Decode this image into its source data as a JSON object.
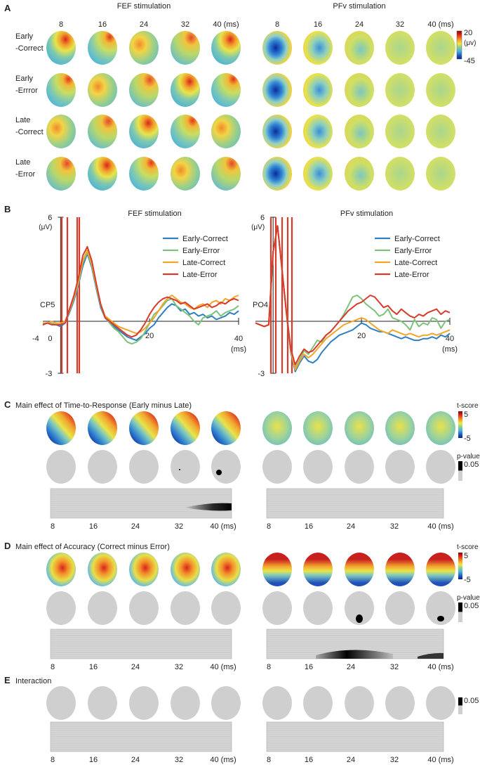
{
  "panels": {
    "A": "A",
    "B": "B",
    "C": "C",
    "D": "D",
    "E": "E"
  },
  "colors": {
    "early_correct": "#2f7fc1",
    "early_error": "#7dc27b",
    "late_correct": "#f0a62a",
    "late_error": "#d93a2b",
    "gray_head": "#cfcfcf",
    "raster_bg": "#d6d6d6"
  },
  "times_ms": [
    "8",
    "16",
    "24",
    "32",
    "40 (ms)"
  ],
  "panelA": {
    "fef_title": "FEF stimulation",
    "pfv_title": "PFv stimulation",
    "rows": [
      {
        "line1": "Early",
        "line2": "-Correct"
      },
      {
        "line1": "Early",
        "line2": "-Errror"
      },
      {
        "line1": "Late",
        "line2": "-Correct"
      },
      {
        "line1": "Late",
        "line2": "-Error"
      }
    ],
    "colorbar": {
      "max": "20",
      "unit": "(μv)",
      "min": "-45"
    }
  },
  "panelC": {
    "title": "Main effect of Time-to-Response (Early minus Late)",
    "tscore": {
      "label": "t-score",
      "max": "5",
      "min": "-5"
    },
    "pvalue": {
      "label": "p-value",
      "value": "0.05"
    }
  },
  "panelD": {
    "title": "Main effect of Accuracy (Correct minus Error)",
    "tscore": {
      "label": "t-score",
      "max": "5",
      "min": "-5"
    },
    "pvalue": {
      "label": "p-value",
      "value": "0.05"
    }
  },
  "panelE": {
    "title": "Interaction",
    "pvalue": {
      "value": "0.05"
    }
  },
  "raster_ticks": [
    "8",
    "16",
    "24",
    "32",
    "40 (ms)"
  ],
  "chart_data": [
    {
      "type": "line",
      "title": "FEF stimulation",
      "channel": "CP5",
      "ylabel": "(μV)",
      "ytick_top": "6",
      "ytick_bottom": "-3",
      "ylim": [
        -3,
        6
      ],
      "xlim": [
        -4,
        40
      ],
      "xtick_labels": {
        "start": "-4",
        "zero": "0",
        "mid": "20",
        "end": "40",
        "unit": "(ms)"
      },
      "x": [
        -4,
        -3,
        -2,
        -1,
        0,
        1,
        2,
        3,
        4,
        5,
        6,
        7,
        8,
        9,
        10,
        11,
        12,
        13,
        14,
        15,
        16,
        17,
        18,
        19,
        20,
        21,
        22,
        23,
        24,
        25,
        26,
        27,
        28,
        29,
        30,
        31,
        32,
        33,
        34,
        35,
        36,
        37,
        38,
        39,
        40
      ],
      "series": [
        {
          "name": "Early-Correct",
          "values": [
            -0.2,
            -0.1,
            -0.1,
            -0.2,
            -0.3,
            -0.1,
            0.5,
            1.2,
            2.1,
            3.2,
            3.9,
            3.1,
            1.9,
            0.8,
            0.2,
            0,
            -0.3,
            -0.5,
            -0.7,
            -0.9,
            -1.0,
            -1.1,
            -0.9,
            -0.7,
            -0.4,
            -0.2,
            0.2,
            0.5,
            0.8,
            1.0,
            0.9,
            0.6,
            0.7,
            0.4,
            0.5,
            0.3,
            0.4,
            0.2,
            0.3,
            0.1,
            0.2,
            0.3,
            0.5,
            0.4,
            0.6
          ]
        },
        {
          "name": "Early-Error",
          "values": [
            -0.2,
            -0.1,
            -0.1,
            -0.2,
            -0.2,
            -0.1,
            0.6,
            1.3,
            2.2,
            3.4,
            4.0,
            3.2,
            2.0,
            0.9,
            0.2,
            -0.1,
            -0.4,
            -0.6,
            -0.9,
            -1.2,
            -1.3,
            -1.2,
            -1.0,
            -0.6,
            -0.1,
            0.4,
            0.6,
            0.9,
            1.2,
            1.3,
            0.9,
            0.7,
            0.5,
            0.3,
            0.0,
            -0.2,
            0.2,
            0.3,
            0.4,
            0.6,
            0.3,
            0.5,
            0.6,
            0.7,
            0.9
          ]
        },
        {
          "name": "Late-Correct",
          "values": [
            -0.1,
            -0.1,
            0,
            -0.1,
            -0.1,
            0,
            0.6,
            1.4,
            2.3,
            3.5,
            4.1,
            3.3,
            2.1,
            1.0,
            0.3,
            0.1,
            -0.1,
            -0.3,
            -0.4,
            -0.5,
            -0.6,
            -0.7,
            -0.6,
            -0.4,
            -0.1,
            0.2,
            0.6,
            1.0,
            1.3,
            1.5,
            1.3,
            1.1,
            1.0,
            0.8,
            0.7,
            0.9,
            1.0,
            0.8,
            1.1,
            1.2,
            1.0,
            1.3,
            1.2,
            1.4,
            1.5
          ]
        },
        {
          "name": "Late-Error",
          "values": [
            -0.2,
            -0.1,
            -0.2,
            -0.2,
            -0.2,
            -0.1,
            0.7,
            1.5,
            2.5,
            3.8,
            4.3,
            3.5,
            2.2,
            1.0,
            0.2,
            0,
            -0.2,
            -0.4,
            -0.6,
            -0.8,
            -0.9,
            -0.8,
            -0.5,
            -0.1,
            0.4,
            0.8,
            1.1,
            1.3,
            1.4,
            1.3,
            1.2,
            1.0,
            1.1,
            0.9,
            0.7,
            0.8,
            0.9,
            1.0,
            0.8,
            0.9,
            1.1,
            1.0,
            1.2,
            1.3,
            1.2
          ]
        }
      ]
    },
    {
      "type": "line",
      "title": "PFv stimulation",
      "channel": "PO4",
      "ylabel": "(μV)",
      "ytick_top": "6",
      "ytick_bottom": "-3",
      "ylim": [
        -3,
        6
      ],
      "xlim": [
        -4,
        40
      ],
      "xtick_labels": {
        "mid": "20",
        "end": "40",
        "unit": "(ms)"
      },
      "x": [
        -4,
        -3,
        -2,
        -1,
        0,
        1,
        2,
        3,
        4,
        5,
        6,
        7,
        8,
        9,
        10,
        11,
        12,
        13,
        14,
        15,
        16,
        17,
        18,
        19,
        20,
        21,
        22,
        23,
        24,
        25,
        26,
        27,
        28,
        29,
        30,
        31,
        32,
        33,
        34,
        35,
        36,
        37,
        38,
        39,
        40
      ],
      "series": [
        {
          "name": "Early-Correct",
          "values": [
            -0.1,
            -0.2,
            -0.3,
            -0.2,
            4.0,
            5.5,
            3.0,
            0.5,
            -1.8,
            -2.9,
            -2.4,
            -2.0,
            -2.3,
            -2.4,
            -2.2,
            -1.8,
            -1.5,
            -1.2,
            -1.0,
            -0.8,
            -0.7,
            -0.6,
            -0.5,
            -0.3,
            -0.1,
            -0.2,
            -0.4,
            -0.5,
            -0.6,
            -0.6,
            -0.7,
            -0.8,
            -0.9,
            -1.0,
            -0.9,
            -1.0,
            -1.1,
            -1.1,
            -1.0,
            -1.0,
            -0.9,
            -1.0,
            -0.8,
            -0.9,
            -0.7
          ]
        },
        {
          "name": "Early-Error",
          "values": [
            -0.1,
            -0.2,
            -0.3,
            -0.2,
            4.0,
            5.5,
            3.0,
            0.6,
            -1.6,
            -2.7,
            -2.2,
            -1.7,
            -1.9,
            -1.5,
            -1.1,
            -1.2,
            -0.8,
            -0.6,
            -0.3,
            0,
            0.4,
            0.9,
            1.4,
            1.5,
            1.3,
            1.0,
            0.8,
            0.6,
            0.3,
            0.4,
            0.7,
            0.2,
            0.1,
            0,
            -0.2,
            -0.5,
            0.1,
            -0.3,
            -0.1,
            -0.2,
            0.2,
            0.1,
            -0.4,
            0,
            0.1
          ]
        },
        {
          "name": "Late-Correct",
          "values": [
            -0.1,
            -0.2,
            -0.3,
            -0.2,
            4.0,
            5.5,
            3.0,
            0.5,
            -1.7,
            -2.8,
            -2.3,
            -1.9,
            -2.1,
            -1.9,
            -1.6,
            -1.3,
            -1.0,
            -0.8,
            -0.6,
            -0.4,
            -0.2,
            -0.1,
            0,
            0.1,
            0.2,
            0.1,
            -0.1,
            -0.3,
            -0.5,
            -0.6,
            -0.7,
            -0.5,
            -0.6,
            -0.7,
            -0.8,
            -0.7,
            -0.8,
            -0.9,
            -0.8,
            -0.8,
            -0.7,
            -0.8,
            -0.7,
            -0.6,
            -0.5
          ]
        },
        {
          "name": "Late-Error",
          "values": [
            -0.1,
            -0.2,
            -0.3,
            -0.2,
            4.0,
            5.5,
            3.0,
            0.5,
            -1.6,
            -2.5,
            -2.0,
            -1.6,
            -1.8,
            -1.7,
            -1.4,
            -1.1,
            -0.8,
            -0.6,
            -0.3,
            0,
            0.3,
            0.6,
            0.8,
            1.0,
            1.1,
            1.3,
            1.5,
            1.4,
            1.1,
            0.8,
            0.9,
            0.6,
            0.4,
            0.7,
            0.5,
            0.3,
            0.2,
            0.4,
            0.3,
            0.5,
            0.6,
            0.7,
            0.4,
            0.6,
            0.5
          ]
        }
      ]
    }
  ]
}
